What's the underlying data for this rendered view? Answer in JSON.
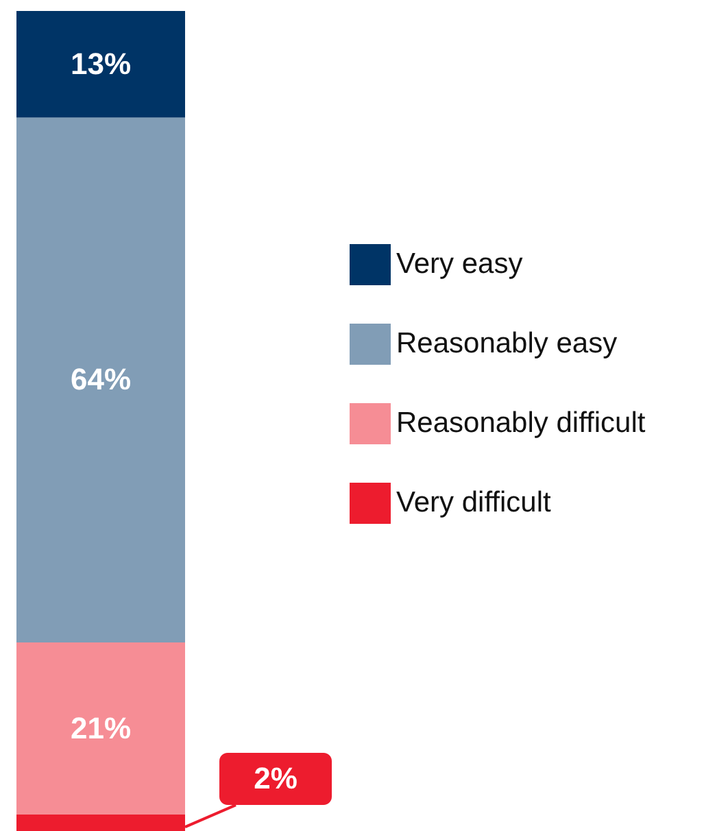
{
  "chart_data": {
    "type": "bar",
    "stacked": true,
    "legend": "right",
    "categories": [
      null
    ],
    "series": [
      {
        "name": "Very difficult",
        "color": "#ed1c2e",
        "values": [
          2
        ],
        "value_labels": [
          "2%"
        ]
      },
      {
        "name": "Reasonably difficult",
        "color": "#f68d95",
        "values": [
          21
        ],
        "value_labels": [
          "21%"
        ]
      },
      {
        "name": "Reasonably easy",
        "color": "#819db6",
        "values": [
          64
        ],
        "value_labels": [
          "64%"
        ]
      },
      {
        "name": "Very easy",
        "color": "#003466",
        "values": [
          13
        ],
        "value_labels": [
          "13%"
        ]
      }
    ]
  }
}
